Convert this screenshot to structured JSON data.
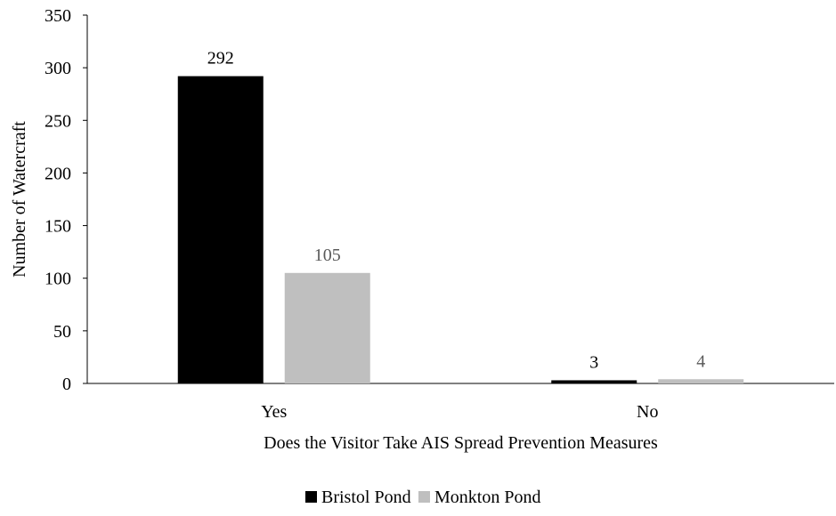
{
  "chart_data": {
    "type": "bar",
    "categories": [
      "Yes",
      "No"
    ],
    "series": [
      {
        "name": "Bristol Pond",
        "values": [
          292,
          3
        ],
        "color": "#000000",
        "label_color": "#000000"
      },
      {
        "name": "Monkton Pond",
        "values": [
          105,
          4
        ],
        "color": "#bfbfbf",
        "label_color": "#595959"
      }
    ],
    "title": "",
    "xlabel": "Does the Visitor Take AIS Spread Prevention Measures",
    "ylabel": "Number of Watercraft",
    "ylim": [
      0,
      350
    ],
    "yticks": [
      0,
      50,
      100,
      150,
      200,
      250,
      300,
      350
    ],
    "grid": false,
    "legend": "bottom",
    "show_data_labels": true
  }
}
